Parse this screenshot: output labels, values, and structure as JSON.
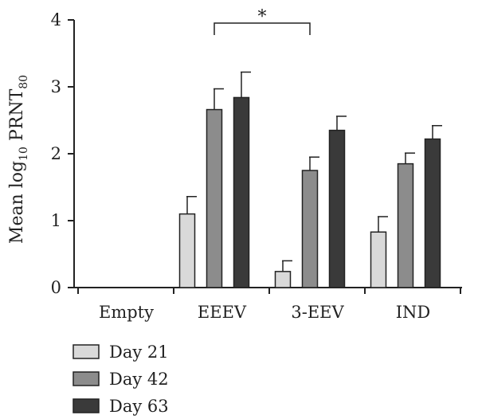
{
  "chart_data": {
    "type": "bar",
    "categories": [
      "Empty",
      "EEEV",
      "3-EEV",
      "IND"
    ],
    "series": [
      {
        "name": "Day 21",
        "color": "#d9d9d9",
        "values": [
          0,
          1.1,
          0.24,
          0.83
        ],
        "errors": [
          0,
          0.26,
          0.16,
          0.23
        ]
      },
      {
        "name": "Day 42",
        "color": "#8c8c8c",
        "values": [
          0,
          2.66,
          1.75,
          1.85
        ],
        "errors": [
          0,
          0.31,
          0.2,
          0.16
        ]
      },
      {
        "name": "Day 63",
        "color": "#3a3a3a",
        "values": [
          0,
          2.84,
          2.35,
          2.22
        ],
        "errors": [
          0,
          0.38,
          0.21,
          0.2
        ]
      }
    ],
    "ylabel_main": "Mean log",
    "ylabel_sub": "10",
    "ylabel_tail": " PRNT",
    "ylabel_sub2": "80",
    "ylim": [
      0,
      4
    ],
    "yticks": [
      "0",
      "1",
      "2",
      "3",
      "4"
    ],
    "significance": {
      "label": "*",
      "from_category": 1,
      "to_category": 2
    },
    "legend_position": "bottom-left",
    "grid": false
  }
}
